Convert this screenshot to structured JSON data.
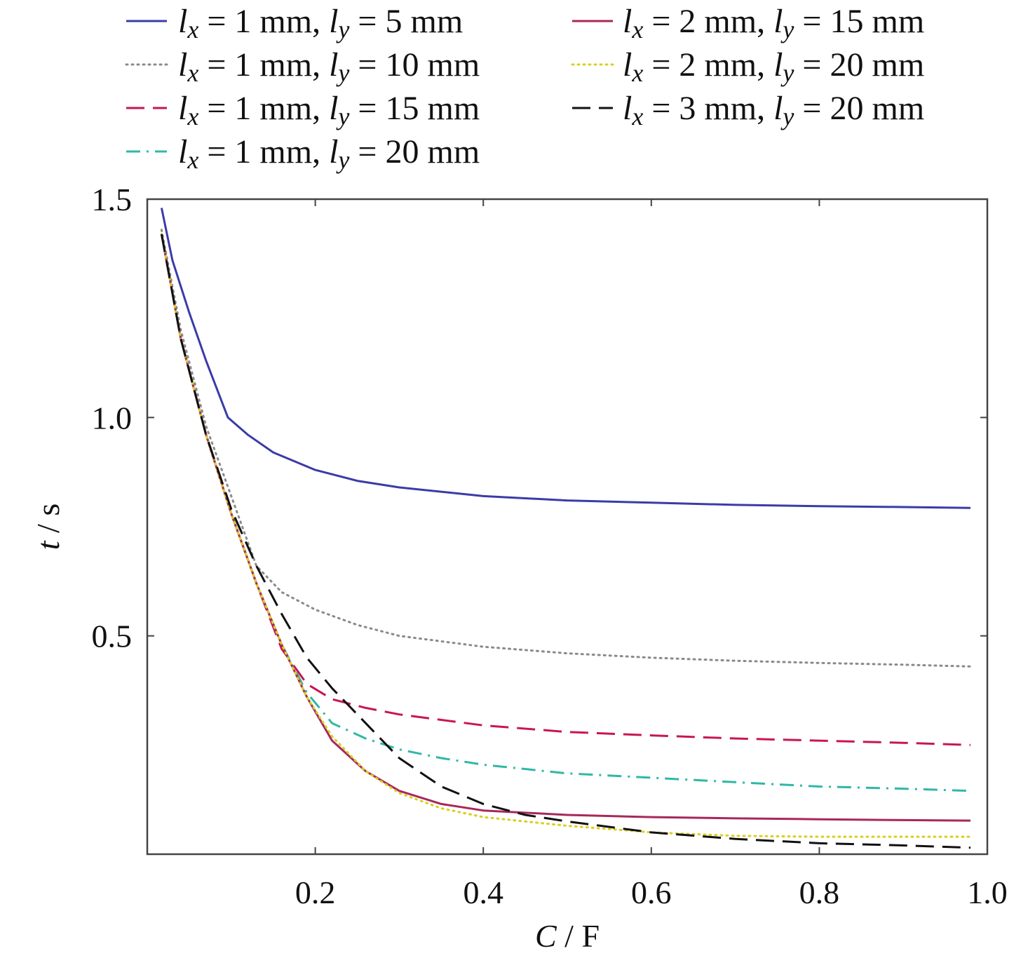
{
  "chart_data": {
    "type": "line",
    "xlabel": {
      "var": "C",
      "unit": "F"
    },
    "ylabel": {
      "var": "t",
      "unit": "s"
    },
    "xlim": [
      0.0,
      1.0
    ],
    "ylim": [
      0.0,
      1.5
    ],
    "xticks": [
      0.2,
      0.4,
      0.6,
      0.8,
      1.0
    ],
    "xtick_labels": [
      "0.2",
      "0.4",
      "0.6",
      "0.8",
      "1.0"
    ],
    "yticks": [
      0.5,
      1.0,
      1.5
    ],
    "ytick_labels": [
      "0.5",
      "1.0",
      "1.5"
    ],
    "grid": false,
    "legend_position": "top",
    "series": [
      {
        "name": "l_x = 1 mm, l_y = 5 mm",
        "lx": "1 mm",
        "ly": "5 mm",
        "color": "#3b3ba8",
        "dash": "solid",
        "x": [
          0.017,
          0.03,
          0.05,
          0.07,
          0.096,
          0.12,
          0.15,
          0.2,
          0.25,
          0.3,
          0.4,
          0.5,
          0.6,
          0.7,
          0.8,
          0.9,
          0.98
        ],
        "y": [
          1.48,
          1.36,
          1.24,
          1.13,
          1.0,
          0.96,
          0.92,
          0.88,
          0.855,
          0.84,
          0.82,
          0.81,
          0.805,
          0.8,
          0.797,
          0.795,
          0.793
        ]
      },
      {
        "name": "l_x = 1 mm, l_y = 10 mm",
        "lx": "1 mm",
        "ly": "10 mm",
        "color": "#8a8a8a",
        "dash": "dotted",
        "x": [
          0.017,
          0.04,
          0.07,
          0.1,
          0.13,
          0.16,
          0.2,
          0.25,
          0.3,
          0.4,
          0.5,
          0.6,
          0.7,
          0.8,
          0.9,
          0.98
        ],
        "y": [
          1.43,
          1.2,
          0.98,
          0.82,
          0.66,
          0.6,
          0.56,
          0.525,
          0.5,
          0.475,
          0.46,
          0.45,
          0.443,
          0.438,
          0.434,
          0.43
        ]
      },
      {
        "name": "l_x = 1 mm, l_y = 15 mm",
        "lx": "1 mm",
        "ly": "15 mm",
        "color": "#c8174f",
        "dash": "long-dash",
        "x": [
          0.017,
          0.04,
          0.07,
          0.1,
          0.13,
          0.16,
          0.19,
          0.22,
          0.26,
          0.3,
          0.4,
          0.5,
          0.6,
          0.7,
          0.8,
          0.9,
          0.98
        ],
        "y": [
          1.42,
          1.18,
          0.96,
          0.78,
          0.62,
          0.47,
          0.39,
          0.355,
          0.335,
          0.32,
          0.295,
          0.28,
          0.272,
          0.265,
          0.26,
          0.255,
          0.25
        ]
      },
      {
        "name": "l_x = 1 mm, l_y = 20 mm",
        "lx": "1 mm",
        "ly": "20 mm",
        "color": "#2fb8a6",
        "dash": "dash-dot",
        "x": [
          0.017,
          0.04,
          0.07,
          0.1,
          0.13,
          0.16,
          0.19,
          0.22,
          0.26,
          0.3,
          0.35,
          0.4,
          0.5,
          0.6,
          0.7,
          0.8,
          0.9,
          0.98
        ],
        "y": [
          1.42,
          1.18,
          0.96,
          0.78,
          0.62,
          0.48,
          0.37,
          0.3,
          0.265,
          0.24,
          0.22,
          0.205,
          0.185,
          0.175,
          0.165,
          0.155,
          0.15,
          0.145
        ]
      },
      {
        "name": "l_x = 2 mm, l_y = 15 mm",
        "lx": "2 mm",
        "ly": "15 mm",
        "color": "#a8285a",
        "dash": "solid",
        "x": [
          0.017,
          0.04,
          0.07,
          0.1,
          0.13,
          0.16,
          0.19,
          0.22,
          0.26,
          0.3,
          0.35,
          0.4,
          0.5,
          0.6,
          0.7,
          0.8,
          0.9,
          0.98
        ],
        "y": [
          1.42,
          1.18,
          0.96,
          0.78,
          0.62,
          0.48,
          0.36,
          0.26,
          0.19,
          0.145,
          0.115,
          0.1,
          0.09,
          0.085,
          0.082,
          0.08,
          0.078,
          0.077
        ]
      },
      {
        "name": "l_x = 2 mm, l_y = 20 mm",
        "lx": "2 mm",
        "ly": "20 mm",
        "color": "#d8d020",
        "dash": "dotted",
        "x": [
          0.017,
          0.04,
          0.07,
          0.1,
          0.13,
          0.16,
          0.19,
          0.22,
          0.26,
          0.3,
          0.35,
          0.4,
          0.5,
          0.6,
          0.7,
          0.8,
          0.9,
          0.98
        ],
        "y": [
          1.42,
          1.18,
          0.96,
          0.78,
          0.62,
          0.48,
          0.36,
          0.27,
          0.19,
          0.14,
          0.105,
          0.085,
          0.065,
          0.05,
          0.042,
          0.04,
          0.04,
          0.04
        ]
      },
      {
        "name": "l_x = 3 mm, l_y = 20 mm",
        "lx": "3 mm",
        "ly": "20 mm",
        "color": "#111111",
        "dash": "long-dash",
        "x": [
          0.017,
          0.04,
          0.07,
          0.1,
          0.13,
          0.16,
          0.19,
          0.22,
          0.26,
          0.3,
          0.35,
          0.4,
          0.45,
          0.5,
          0.6,
          0.7,
          0.8,
          0.9,
          0.98
        ],
        "y": [
          1.42,
          1.18,
          0.96,
          0.79,
          0.66,
          0.55,
          0.45,
          0.38,
          0.3,
          0.22,
          0.155,
          0.115,
          0.09,
          0.075,
          0.05,
          0.035,
          0.025,
          0.02,
          0.015
        ]
      }
    ]
  }
}
